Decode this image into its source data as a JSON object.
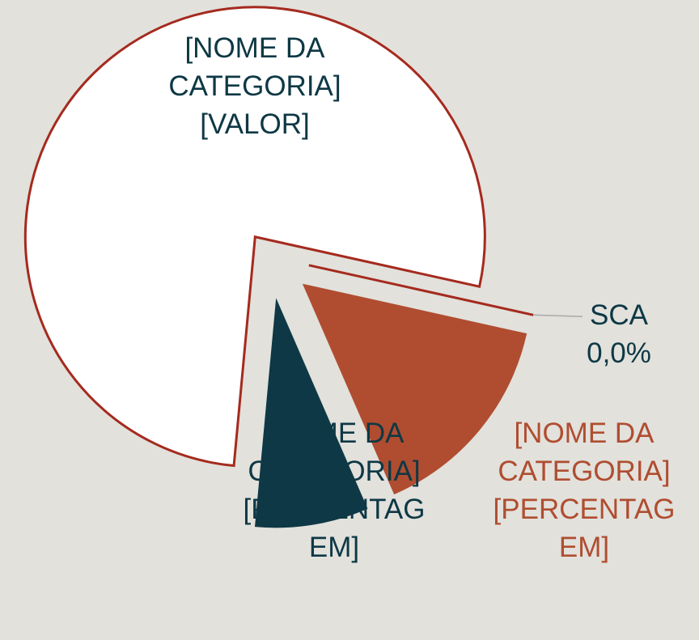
{
  "chart_data": {
    "type": "pie",
    "categories": [
      "SCA",
      "[NOME DA CATEGORIA]",
      "[NOME DA CATEGORIA]",
      "[NOME DA CATEGORIA]"
    ],
    "values": [
      0,
      15,
      8,
      77
    ],
    "value_labels": [
      "0,0%",
      "[PERCENTAGEM]",
      "[PERCENTAGEM]",
      "[VALOR]"
    ],
    "colors": [
      "#a52a1e",
      "#b04d30",
      "#0e3845",
      "#ffffff"
    ],
    "label_colors": [
      "#0e3845",
      "#b04d30",
      "#0e3845",
      "#0e3845"
    ]
  }
}
